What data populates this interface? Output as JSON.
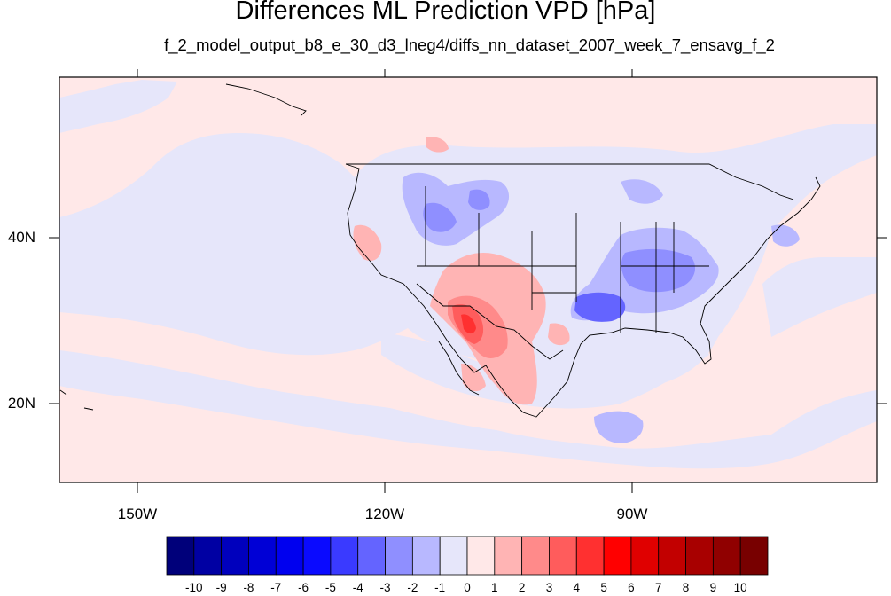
{
  "title": "Differences ML Prediction VPD [hPa]",
  "subtitle": "f_2_model_output_b8_e_30_d3_lneg4/diffs_nn_dataset_2007_week_7_ensavg_f_2",
  "latitude_labels": [
    "40N",
    "20N"
  ],
  "longitude_labels": [
    "150W",
    "120W",
    "90W"
  ],
  "colorbar": {
    "labels": [
      "-10",
      "-9",
      "-8",
      "-7",
      "-6",
      "-5",
      "-4",
      "-3",
      "-2",
      "-1",
      "0",
      "1",
      "2",
      "3",
      "4",
      "5",
      "6",
      "7",
      "8",
      "9",
      "10"
    ],
    "colors": [
      "#00007a",
      "#0000a3",
      "#0000bd",
      "#0000d6",
      "#0000ef",
      "#0a0aff",
      "#3a3aff",
      "#6464ff",
      "#8f8fff",
      "#b8b8ff",
      "#e6e6fa",
      "#ffe8e8",
      "#ffb4b4",
      "#ff8a8a",
      "#ff5c5c",
      "#ff3030",
      "#ff0000",
      "#e00000",
      "#c20000",
      "#a80000",
      "#900000",
      "#780000"
    ]
  },
  "field_colors": {
    "ocean_positive": "#ffe8e8",
    "ocean_negative": "#e6e6fa",
    "land_outline": "#000000"
  }
}
